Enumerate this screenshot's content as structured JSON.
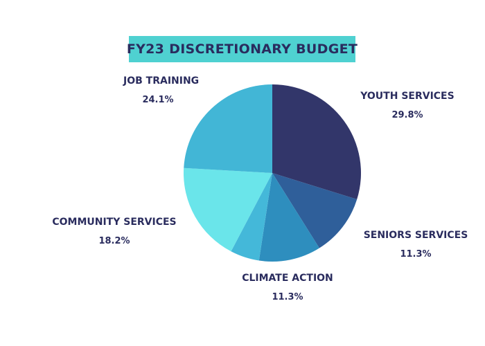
{
  "chart_data": {
    "type": "pie",
    "title": "FY23 DISCRETIONARY BUDGET",
    "slices": [
      {
        "name": "YOUTH SERVICES",
        "value": 29.8,
        "label": "29.8%",
        "color": "#32366a"
      },
      {
        "name": "SENIORS SERVICES",
        "value": 11.3,
        "label": "11.3%",
        "color": "#2f5f9a"
      },
      {
        "name": "CLIMATE ACTION",
        "value": 11.3,
        "label": "11.3%",
        "color": "#2e8ebe"
      },
      {
        "name": "",
        "value": 5.3,
        "label": "",
        "color": "#44b8d9"
      },
      {
        "name": "COMMUNITY SERVICES",
        "value": 18.2,
        "label": "18.2%",
        "color": "#6ae5ea"
      },
      {
        "name": "JOB TRAINING",
        "value": 24.1,
        "label": "24.1%",
        "color": "#42b6d6"
      }
    ]
  }
}
